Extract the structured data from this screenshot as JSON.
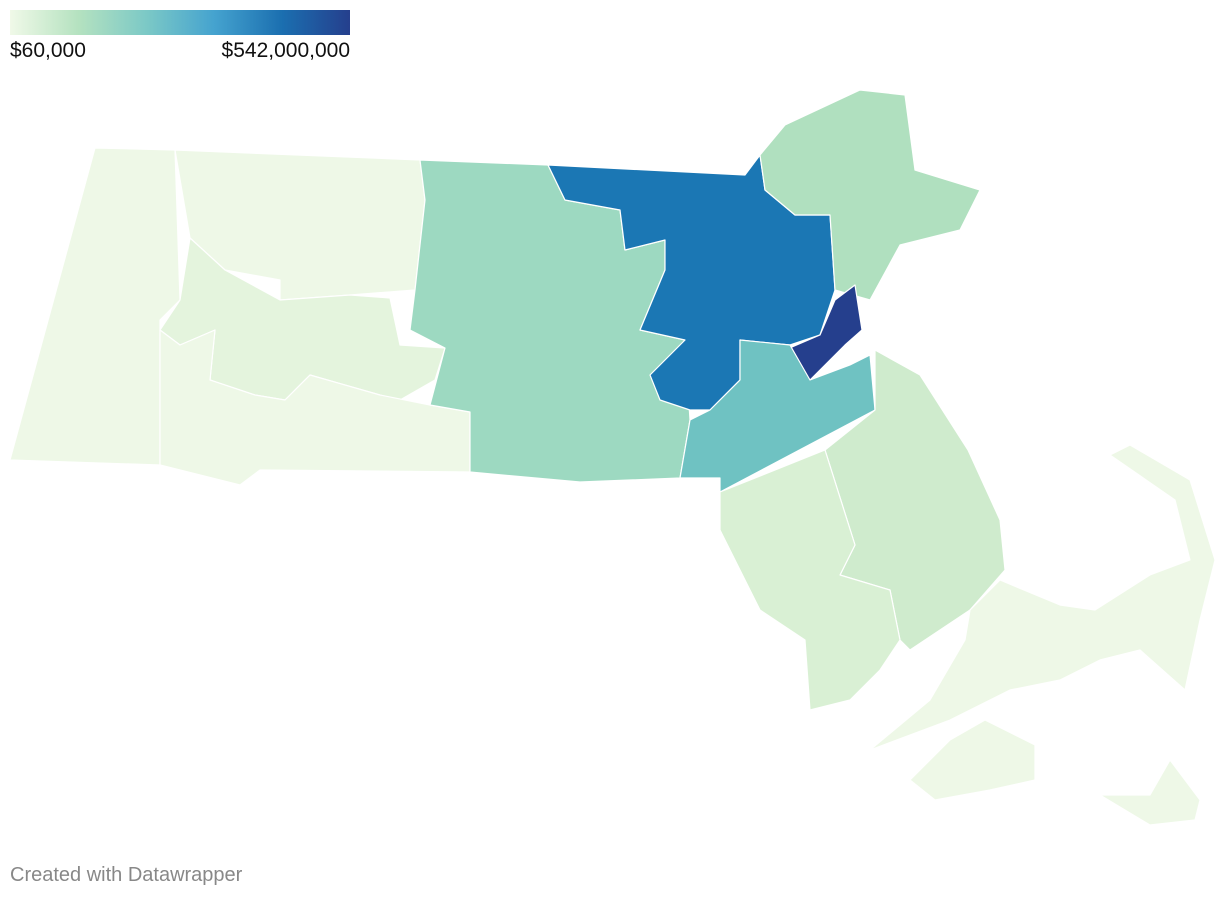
{
  "legend": {
    "min_label": "$60,000",
    "max_label": "$542,000,000"
  },
  "footer": {
    "credit": "Created with Datawrapper"
  }
}
